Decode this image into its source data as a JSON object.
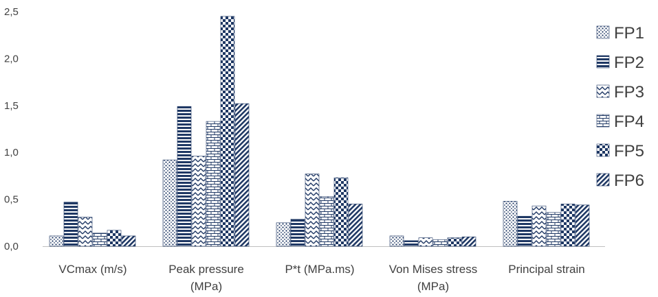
{
  "chart_data": {
    "type": "bar",
    "categories": [
      [
        "VCmax (m/s)"
      ],
      [
        "Peak pressure",
        "(MPa)"
      ],
      [
        "P*t (MPa.ms)"
      ],
      [
        "Von Mises stress",
        "(MPa)"
      ],
      [
        "Principal strain"
      ]
    ],
    "series": [
      {
        "name": "FP1",
        "values": [
          0.11,
          0.92,
          0.25,
          0.11,
          0.48
        ],
        "pattern": "dots"
      },
      {
        "name": "FP2",
        "values": [
          0.47,
          1.49,
          0.29,
          0.06,
          0.32
        ],
        "pattern": "hstripes"
      },
      {
        "name": "FP3",
        "values": [
          0.31,
          0.96,
          0.77,
          0.09,
          0.43
        ],
        "pattern": "zigzag"
      },
      {
        "name": "FP4",
        "values": [
          0.14,
          1.33,
          0.53,
          0.07,
          0.36
        ],
        "pattern": "brick"
      },
      {
        "name": "FP5",
        "values": [
          0.17,
          2.45,
          0.73,
          0.09,
          0.45
        ],
        "pattern": "checker"
      },
      {
        "name": "FP6",
        "values": [
          0.11,
          1.52,
          0.45,
          0.1,
          0.44
        ],
        "pattern": "diagonal"
      }
    ],
    "y_ticks": [
      "0,0",
      "0,5",
      "1,0",
      "1,5",
      "2,0",
      "2,5"
    ],
    "y_tick_values": [
      0,
      0.5,
      1.0,
      1.5,
      2.0,
      2.5
    ],
    "ylim": [
      0,
      2.5
    ],
    "title": "",
    "xlabel": "",
    "ylabel": "",
    "grid": false,
    "legend_position": "right",
    "colors": {
      "bar_ink": "#1f3864",
      "axis": "#bfbfbf",
      "text": "#404040"
    }
  }
}
